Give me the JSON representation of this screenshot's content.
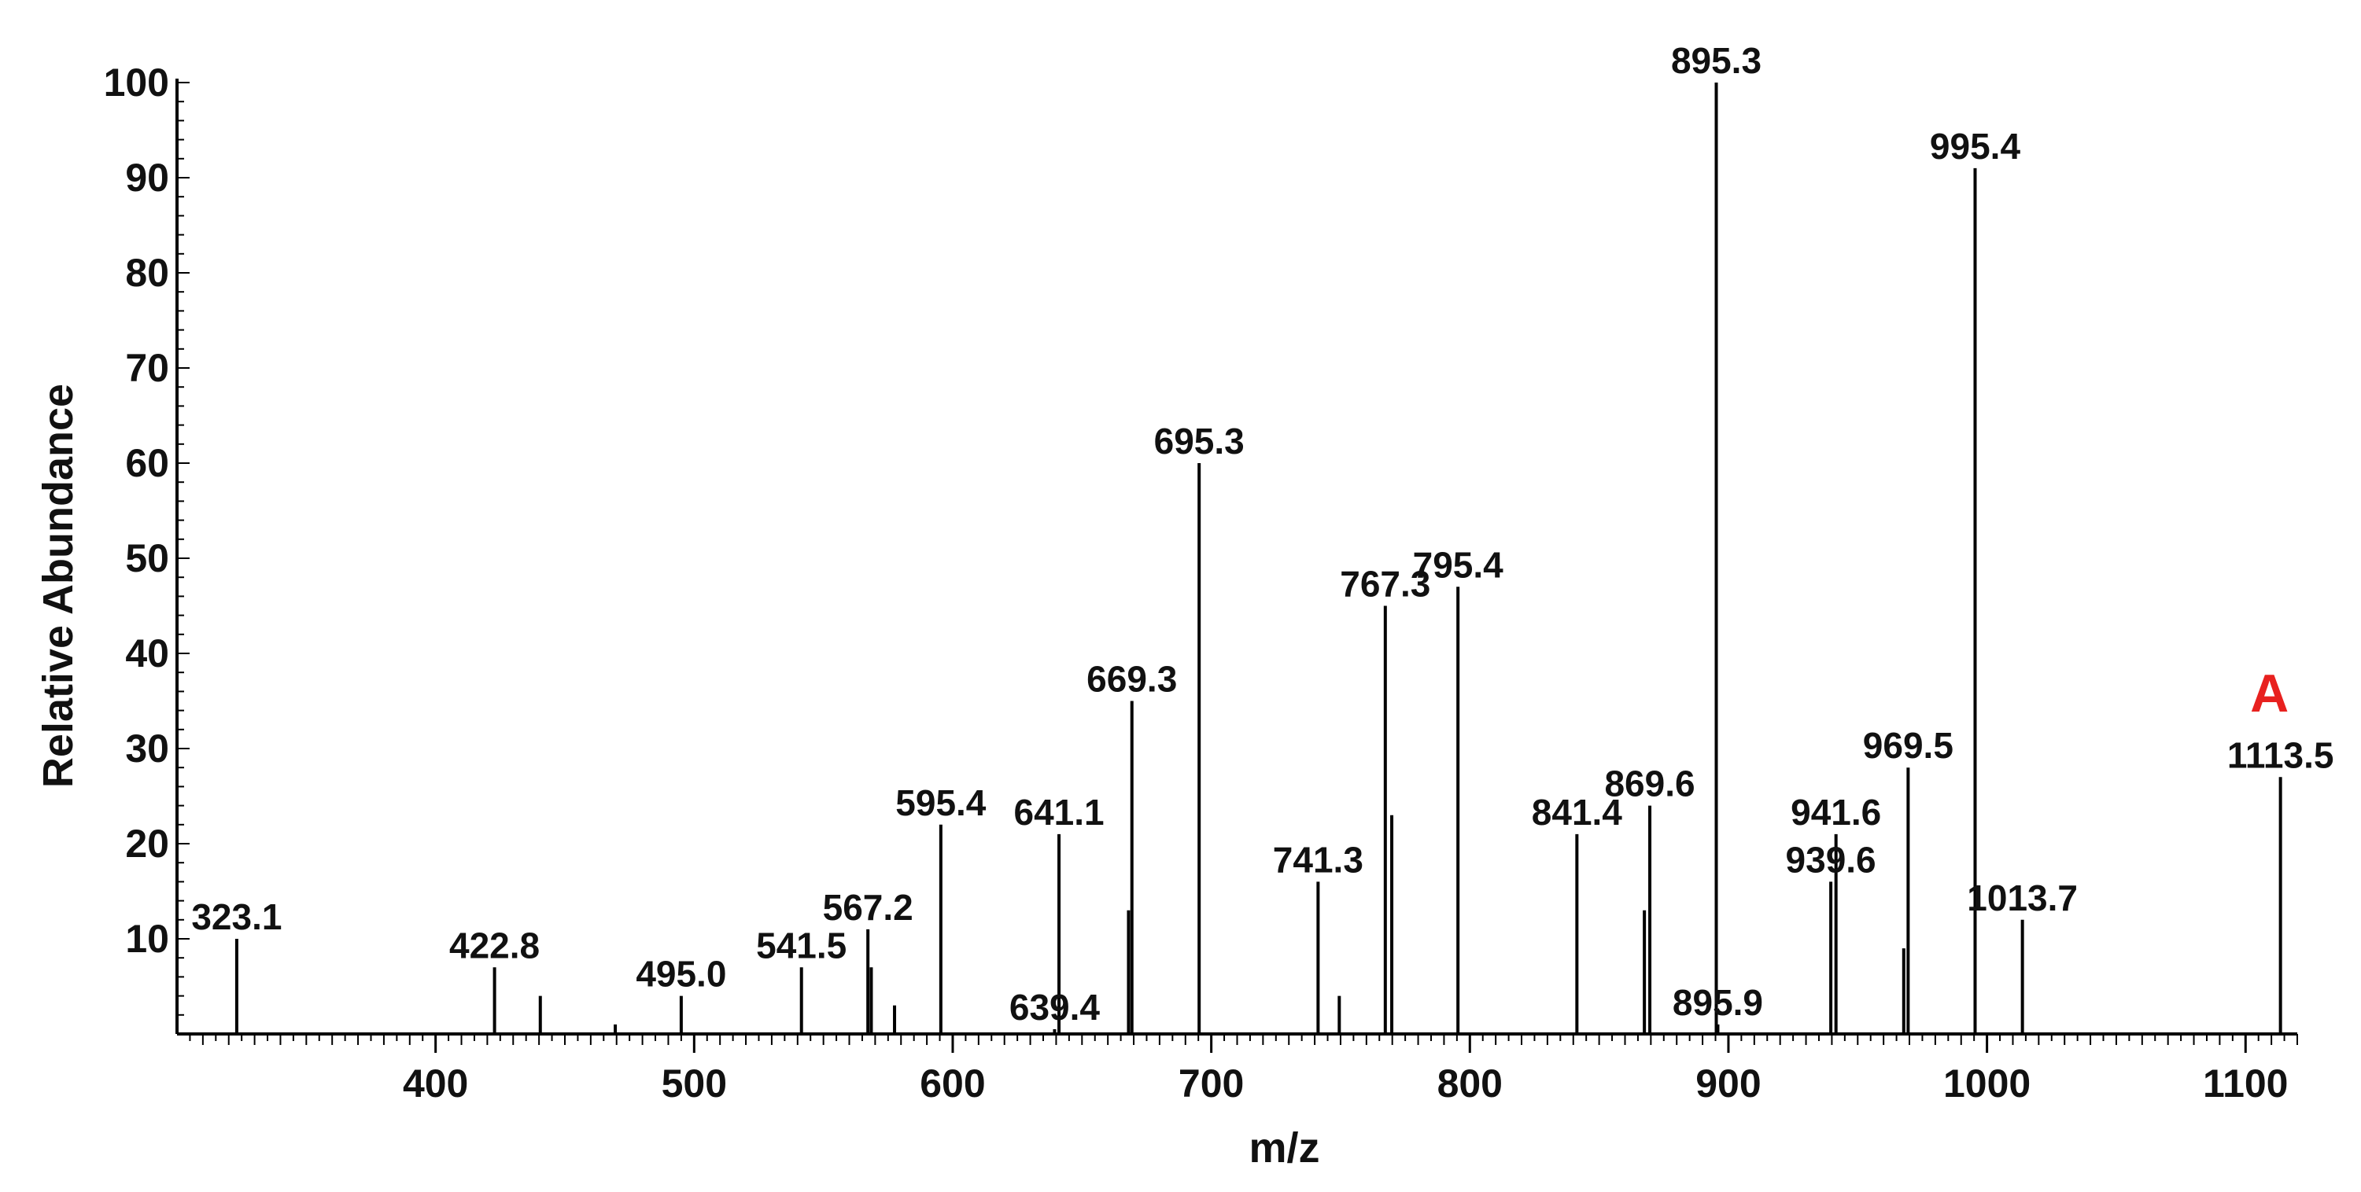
{
  "chart_data": {
    "type": "bar",
    "title": "",
    "panel_label": "A",
    "xlabel": "m/z",
    "ylabel": "Relative Abundance",
    "xlim": [
      300,
      1120
    ],
    "ylim": [
      0,
      100
    ],
    "x_ticks": [
      400,
      500,
      600,
      700,
      800,
      900,
      1000,
      1100
    ],
    "y_ticks": [
      10,
      20,
      30,
      40,
      50,
      60,
      70,
      80,
      90,
      100
    ],
    "grid": false,
    "legend": "none",
    "colors": {
      "bars": "#000000",
      "panel_label": "#e8211f",
      "leader_line": "#4ccf6f"
    },
    "series": [
      {
        "x": [
          323.1,
          422.8,
          440.5,
          469.5,
          495.0,
          541.5,
          567.2,
          568.5,
          577.5,
          595.4,
          639.4,
          641.1,
          668.0,
          669.3,
          695.3,
          741.3,
          749.5,
          767.3,
          769.8,
          795.4,
          841.4,
          867.5,
          869.6,
          895.3,
          895.9,
          939.6,
          941.6,
          967.8,
          969.5,
          995.4,
          1013.7,
          1113.5
        ],
        "values": [
          10,
          7,
          4,
          1,
          4,
          7,
          11,
          7,
          3,
          22,
          0.5,
          21,
          13,
          35,
          60,
          16,
          4,
          45,
          23,
          47,
          21,
          13,
          24,
          100,
          1,
          16,
          21,
          9,
          28,
          91,
          12,
          27
        ]
      }
    ],
    "peak_labels": [
      {
        "text": "323.1",
        "x": 323.1,
        "y": 10
      },
      {
        "text": "422.8",
        "x": 422.8,
        "y": 7
      },
      {
        "text": "495.0",
        "x": 495.0,
        "y": 4
      },
      {
        "text": "541.5",
        "x": 541.5,
        "y": 7
      },
      {
        "text": "567.2",
        "x": 567.2,
        "y": 11
      },
      {
        "text": "595.4",
        "x": 595.4,
        "y": 22
      },
      {
        "text": "639.4",
        "x": 639.4,
        "y": 0.5
      },
      {
        "text": "641.1",
        "x": 641.1,
        "y": 21
      },
      {
        "text": "669.3",
        "x": 669.3,
        "y": 35
      },
      {
        "text": "695.3",
        "x": 695.3,
        "y": 60
      },
      {
        "text": "741.3",
        "x": 741.3,
        "y": 16
      },
      {
        "text": "767.3",
        "x": 767.3,
        "y": 45
      },
      {
        "text": "795.4",
        "x": 795.4,
        "y": 47
      },
      {
        "text": "841.4",
        "x": 841.4,
        "y": 21
      },
      {
        "text": "869.6",
        "x": 869.6,
        "y": 24
      },
      {
        "text": "895.3",
        "x": 895.3,
        "y": 100
      },
      {
        "text": "895.9",
        "x": 895.9,
        "y": 1
      },
      {
        "text": "939.6",
        "x": 939.6,
        "y": 16
      },
      {
        "text": "941.6",
        "x": 941.6,
        "y": 21
      },
      {
        "text": "969.5",
        "x": 969.5,
        "y": 28
      },
      {
        "text": "995.4",
        "x": 995.4,
        "y": 91
      },
      {
        "text": "1013.7",
        "x": 1013.7,
        "y": 12
      },
      {
        "text": "1113.5",
        "x": 1113.5,
        "y": 27
      }
    ]
  }
}
